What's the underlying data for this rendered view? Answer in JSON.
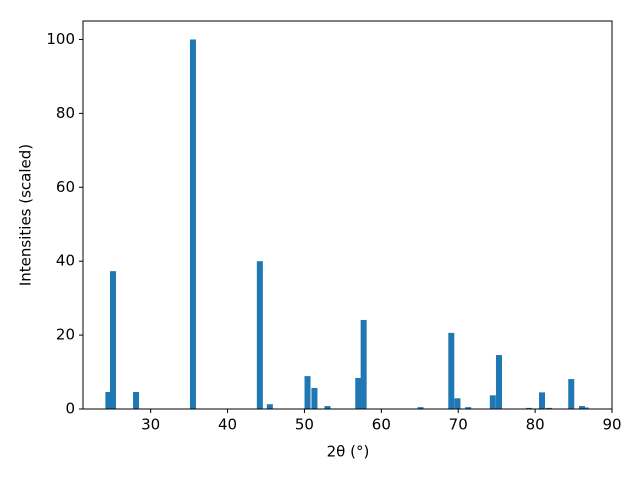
{
  "chart_data": {
    "type": "bar",
    "x_label": "2θ (°)",
    "y_label": "Intensities (scaled)",
    "x": [
      24.5,
      25.1,
      28.1,
      35.5,
      44.2,
      45.5,
      50.4,
      51.3,
      53.0,
      57.0,
      57.7,
      65.1,
      69.1,
      69.9,
      71.3,
      74.5,
      75.3,
      79.2,
      80.9,
      81.8,
      84.7,
      86.1,
      86.6
    ],
    "values": [
      4.6,
      37.3,
      4.6,
      100,
      40,
      1.3,
      8.9,
      5.7,
      0.8,
      8.4,
      24.1,
      0.5,
      20.6,
      2.9,
      0.5,
      3.7,
      14.6,
      0.3,
      4.5,
      0.3,
      8.1,
      0.8,
      0.4
    ],
    "color": "#1f77b4",
    "xlim": [
      21.2,
      90
    ],
    "xticks": [
      30,
      40,
      50,
      60,
      70,
      80,
      90
    ],
    "ylim": [
      0,
      105
    ],
    "yticks": [
      0,
      20,
      40,
      60,
      80,
      100
    ],
    "grid": false
  }
}
